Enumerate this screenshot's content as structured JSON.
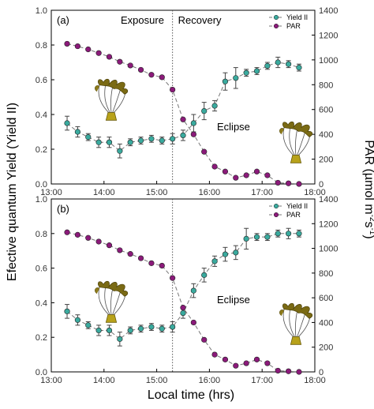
{
  "chart_data": [
    {
      "type": "line",
      "panel_label": "(a)",
      "phase_labels": [
        "Exposure",
        "Recovery"
      ],
      "annotation": "Eclipse",
      "xlim": [
        13.0,
        18.0
      ],
      "ylim_left": [
        0.0,
        1.0
      ],
      "ylim_right": [
        0,
        1400
      ],
      "x_ticks": [
        "13:00",
        "14:00",
        "15:00",
        "16:00",
        "17:00",
        "18:00"
      ],
      "y_ticks_left": [
        "0.0",
        "0.2",
        "0.4",
        "0.6",
        "0.8",
        "1.0"
      ],
      "y_ticks_right": [
        "0",
        "200",
        "400",
        "600",
        "800",
        "1000",
        "1200",
        "1400"
      ],
      "eclipse_max_time": 15.3,
      "legend_position": "top-right",
      "series": [
        {
          "name": "Yield II",
          "axis": "left",
          "color": "#3aaa9e",
          "x": [
            13.3,
            13.5,
            13.7,
            13.9,
            14.1,
            14.3,
            14.5,
            14.7,
            14.9,
            15.1,
            15.3,
            15.5,
            15.7,
            15.9,
            16.1,
            16.3,
            16.5,
            16.7,
            16.9,
            17.1,
            17.3,
            17.5,
            17.7
          ],
          "y": [
            0.35,
            0.3,
            0.27,
            0.24,
            0.24,
            0.19,
            0.24,
            0.25,
            0.26,
            0.25,
            0.26,
            0.28,
            0.35,
            0.42,
            0.45,
            0.59,
            0.61,
            0.64,
            0.65,
            0.68,
            0.7,
            0.69,
            0.67
          ],
          "error": [
            0.04,
            0.03,
            0.02,
            0.03,
            0.03,
            0.04,
            0.02,
            0.02,
            0.02,
            0.02,
            0.03,
            0.03,
            0.05,
            0.05,
            0.03,
            0.05,
            0.06,
            0.02,
            0.02,
            0.02,
            0.03,
            0.02,
            0.02
          ]
        },
        {
          "name": "PAR",
          "axis": "right",
          "color": "#8b1a7a",
          "x": [
            13.3,
            13.5,
            13.7,
            13.9,
            14.1,
            14.3,
            14.5,
            14.7,
            14.9,
            15.1,
            15.3,
            15.5,
            15.7,
            15.9,
            16.1,
            16.3,
            16.5,
            16.7,
            16.9,
            17.1,
            17.3,
            17.5,
            17.7
          ],
          "y": [
            1130,
            1110,
            1085,
            1055,
            1025,
            985,
            955,
            920,
            880,
            860,
            760,
            520,
            400,
            260,
            140,
            100,
            50,
            70,
            100,
            70,
            10,
            5,
            0
          ]
        }
      ]
    },
    {
      "type": "line",
      "panel_label": "(b)",
      "annotation": "Eclipse",
      "xlim": [
        13.0,
        18.0
      ],
      "ylim_left": [
        0.0,
        1.0
      ],
      "ylim_right": [
        0,
        1400
      ],
      "x_ticks": [
        "13:00",
        "14:00",
        "15:00",
        "16:00",
        "17:00",
        "18:00"
      ],
      "y_ticks_left": [
        "0.0",
        "0.2",
        "0.4",
        "0.6",
        "0.8",
        "1.0"
      ],
      "y_ticks_right": [
        "0",
        "200",
        "400",
        "600",
        "800",
        "1000",
        "1200",
        "1400"
      ],
      "eclipse_max_time": 15.3,
      "legend_position": "top-right",
      "series": [
        {
          "name": "Yield II",
          "axis": "left",
          "color": "#3aaa9e",
          "x": [
            13.3,
            13.5,
            13.7,
            13.9,
            14.1,
            14.3,
            14.5,
            14.7,
            14.9,
            15.1,
            15.3,
            15.5,
            15.7,
            15.9,
            16.1,
            16.3,
            16.5,
            16.7,
            16.9,
            17.1,
            17.3,
            17.5,
            17.7
          ],
          "y": [
            0.35,
            0.3,
            0.27,
            0.24,
            0.24,
            0.19,
            0.24,
            0.25,
            0.26,
            0.25,
            0.26,
            0.34,
            0.47,
            0.56,
            0.64,
            0.68,
            0.69,
            0.77,
            0.78,
            0.78,
            0.8,
            0.8,
            0.8
          ],
          "error": [
            0.04,
            0.03,
            0.02,
            0.03,
            0.03,
            0.04,
            0.02,
            0.02,
            0.02,
            0.02,
            0.03,
            0.03,
            0.04,
            0.04,
            0.03,
            0.04,
            0.04,
            0.06,
            0.02,
            0.02,
            0.02,
            0.03,
            0.02
          ]
        },
        {
          "name": "PAR",
          "axis": "right",
          "color": "#8b1a7a",
          "x": [
            13.3,
            13.5,
            13.7,
            13.9,
            14.1,
            14.3,
            14.5,
            14.7,
            14.9,
            15.1,
            15.3,
            15.5,
            15.7,
            15.9,
            16.1,
            16.3,
            16.5,
            16.7,
            16.9,
            17.1,
            17.3,
            17.5,
            17.7
          ],
          "y": [
            1130,
            1110,
            1085,
            1055,
            1025,
            985,
            955,
            920,
            880,
            860,
            760,
            520,
            400,
            260,
            140,
            100,
            50,
            70,
            100,
            70,
            10,
            5,
            0
          ]
        }
      ]
    }
  ],
  "axis_titles": {
    "x": "Local time (hrs)",
    "y_left": "Efective quantum Yield (Yield II)",
    "y_right_main": "PAR (µmol m",
    "y_right_exp1": "-2",
    "y_right_mid": "s",
    "y_right_exp2": "-1",
    "y_right_end": ")"
  },
  "icons": [
    "coral-icon"
  ]
}
